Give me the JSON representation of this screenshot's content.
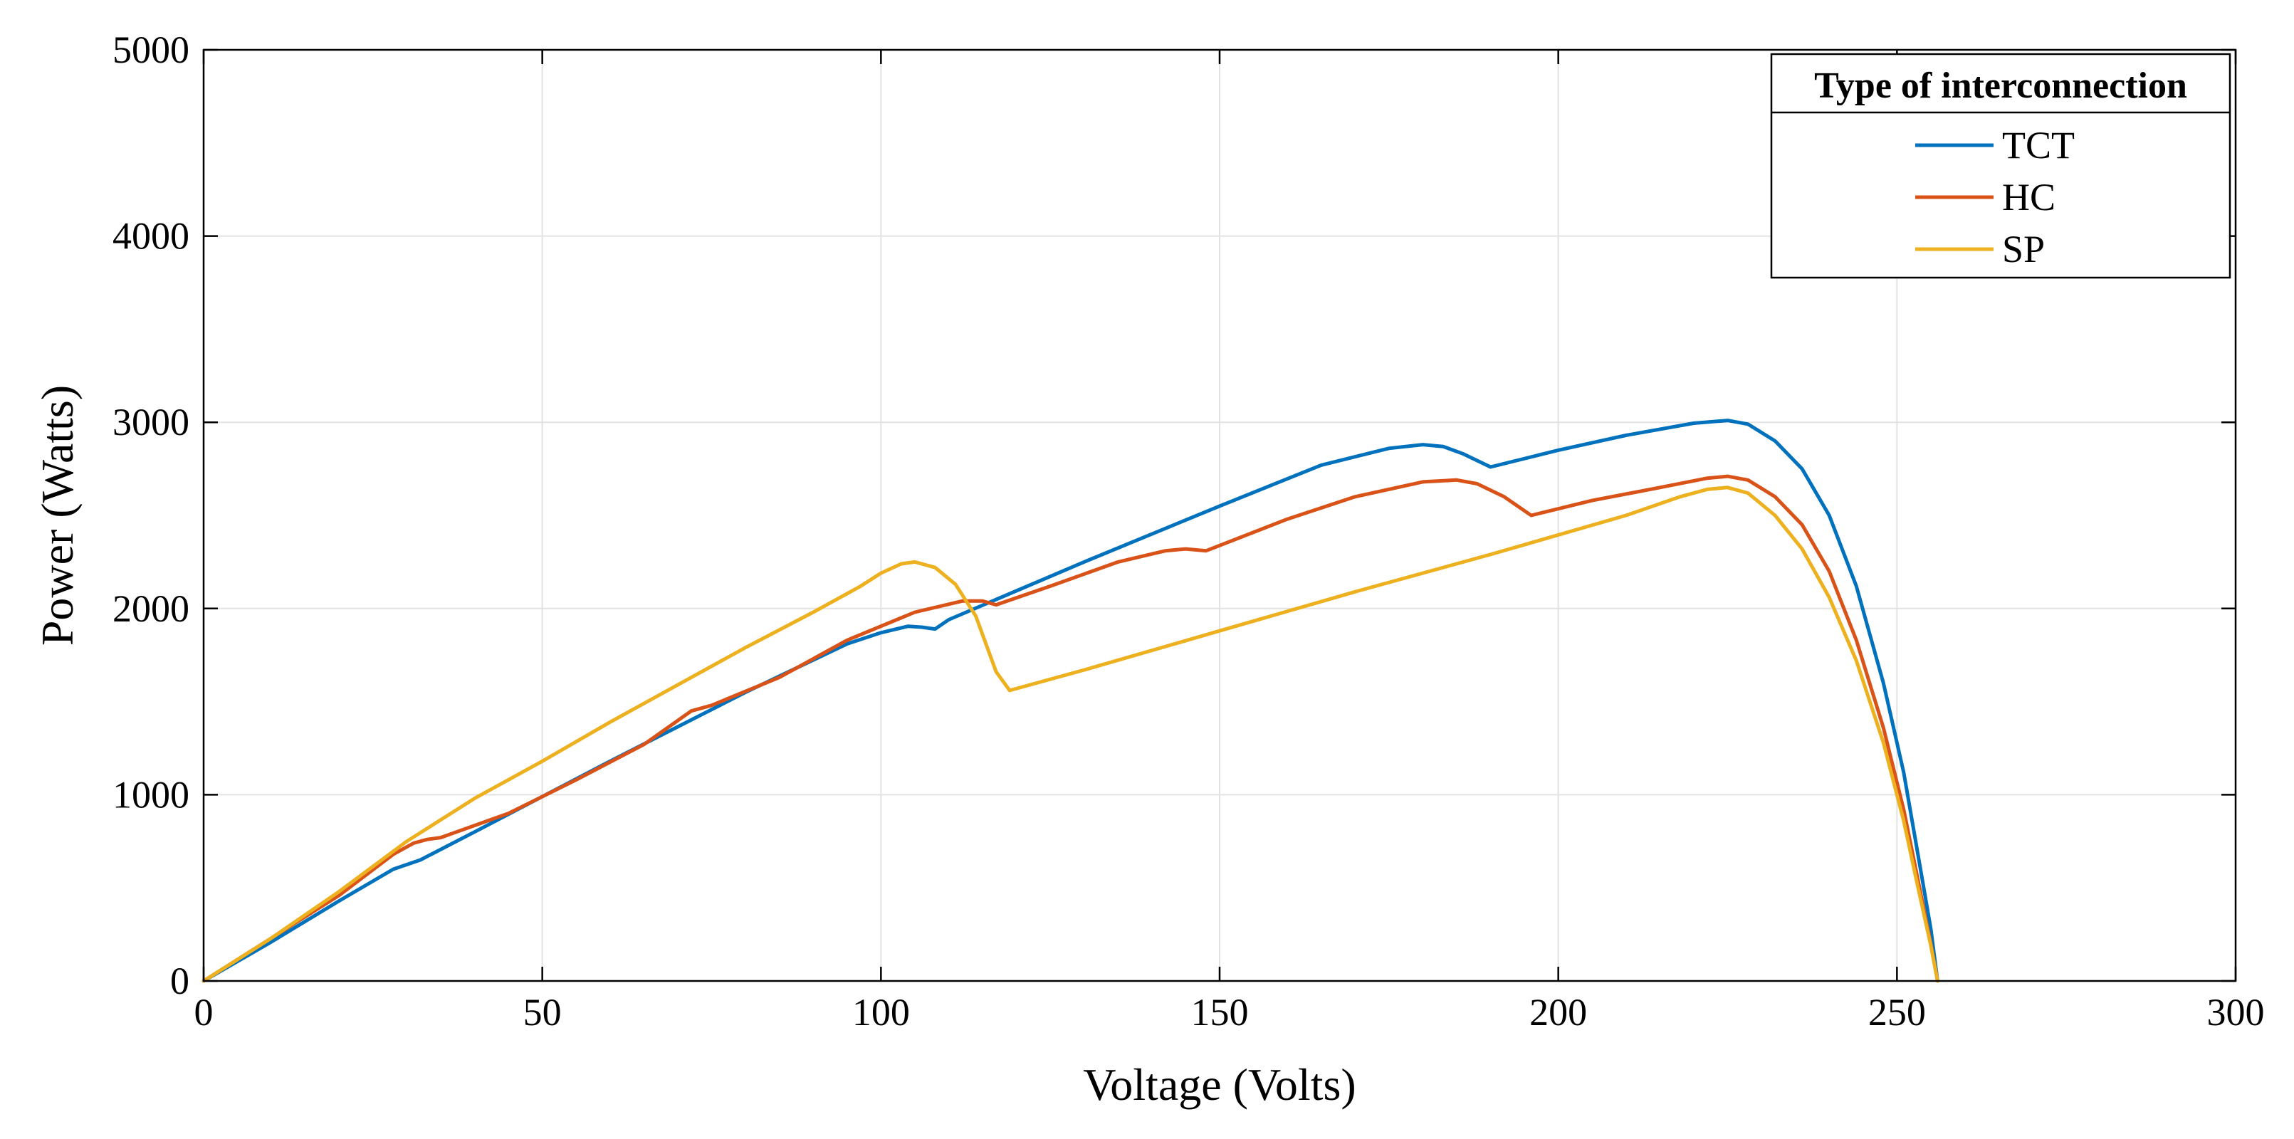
{
  "chart_data": {
    "type": "line",
    "title": "",
    "xlabel": "Voltage (Volts)",
    "ylabel": "Power (Watts)",
    "xlim": [
      0,
      300
    ],
    "ylim": [
      0,
      5000
    ],
    "xticks": [
      0,
      50,
      100,
      150,
      200,
      250,
      300
    ],
    "yticks": [
      0,
      1000,
      2000,
      3000,
      4000,
      5000
    ],
    "grid": true,
    "legend": {
      "title": "Type of interconnection",
      "position": "top-right"
    },
    "series": [
      {
        "name": "TCT",
        "color": "#0072BD",
        "points": [
          [
            0,
            0
          ],
          [
            10,
            210
          ],
          [
            20,
            430
          ],
          [
            28,
            600
          ],
          [
            32,
            650
          ],
          [
            40,
            800
          ],
          [
            60,
            1180
          ],
          [
            80,
            1550
          ],
          [
            95,
            1810
          ],
          [
            100,
            1870
          ],
          [
            104,
            1905
          ],
          [
            106,
            1900
          ],
          [
            108,
            1890
          ],
          [
            110,
            1940
          ],
          [
            130,
            2250
          ],
          [
            150,
            2550
          ],
          [
            165,
            2770
          ],
          [
            175,
            2860
          ],
          [
            180,
            2880
          ],
          [
            183,
            2870
          ],
          [
            186,
            2830
          ],
          [
            190,
            2760
          ],
          [
            200,
            2850
          ],
          [
            210,
            2930
          ],
          [
            220,
            2995
          ],
          [
            225,
            3010
          ],
          [
            228,
            2990
          ],
          [
            232,
            2900
          ],
          [
            236,
            2750
          ],
          [
            240,
            2500
          ],
          [
            244,
            2120
          ],
          [
            248,
            1600
          ],
          [
            251,
            1120
          ],
          [
            253,
            700
          ],
          [
            255,
            280
          ],
          [
            256,
            0
          ]
        ]
      },
      {
        "name": "HC",
        "color": "#D95319",
        "points": [
          [
            0,
            0
          ],
          [
            10,
            230
          ],
          [
            20,
            460
          ],
          [
            28,
            680
          ],
          [
            31,
            740
          ],
          [
            33,
            760
          ],
          [
            35,
            770
          ],
          [
            45,
            900
          ],
          [
            55,
            1080
          ],
          [
            65,
            1270
          ],
          [
            72,
            1450
          ],
          [
            75,
            1480
          ],
          [
            85,
            1630
          ],
          [
            95,
            1830
          ],
          [
            105,
            1980
          ],
          [
            112,
            2040
          ],
          [
            115,
            2040
          ],
          [
            117,
            2020
          ],
          [
            125,
            2120
          ],
          [
            135,
            2250
          ],
          [
            142,
            2310
          ],
          [
            145,
            2320
          ],
          [
            148,
            2310
          ],
          [
            160,
            2480
          ],
          [
            170,
            2600
          ],
          [
            180,
            2680
          ],
          [
            185,
            2690
          ],
          [
            188,
            2670
          ],
          [
            192,
            2600
          ],
          [
            194,
            2550
          ],
          [
            196,
            2500
          ],
          [
            205,
            2580
          ],
          [
            215,
            2650
          ],
          [
            222,
            2700
          ],
          [
            225,
            2710
          ],
          [
            228,
            2690
          ],
          [
            232,
            2600
          ],
          [
            236,
            2450
          ],
          [
            240,
            2200
          ],
          [
            244,
            1830
          ],
          [
            248,
            1360
          ],
          [
            251,
            920
          ],
          [
            253,
            560
          ],
          [
            255,
            200
          ],
          [
            256,
            0
          ]
        ]
      },
      {
        "name": "SP",
        "color": "#EDB120",
        "points": [
          [
            0,
            0
          ],
          [
            10,
            230
          ],
          [
            20,
            480
          ],
          [
            30,
            750
          ],
          [
            40,
            980
          ],
          [
            50,
            1180
          ],
          [
            60,
            1390
          ],
          [
            70,
            1590
          ],
          [
            80,
            1790
          ],
          [
            90,
            1980
          ],
          [
            97,
            2120
          ],
          [
            100,
            2190
          ],
          [
            103,
            2240
          ],
          [
            105,
            2250
          ],
          [
            108,
            2220
          ],
          [
            111,
            2130
          ],
          [
            114,
            1960
          ],
          [
            117,
            1660
          ],
          [
            119,
            1560
          ],
          [
            130,
            1670
          ],
          [
            150,
            1880
          ],
          [
            170,
            2090
          ],
          [
            190,
            2290
          ],
          [
            210,
            2500
          ],
          [
            218,
            2600
          ],
          [
            222,
            2640
          ],
          [
            225,
            2650
          ],
          [
            228,
            2620
          ],
          [
            232,
            2500
          ],
          [
            236,
            2320
          ],
          [
            240,
            2060
          ],
          [
            244,
            1720
          ],
          [
            248,
            1280
          ],
          [
            251,
            860
          ],
          [
            253,
            520
          ],
          [
            255,
            190
          ],
          [
            256,
            0
          ]
        ]
      }
    ]
  }
}
